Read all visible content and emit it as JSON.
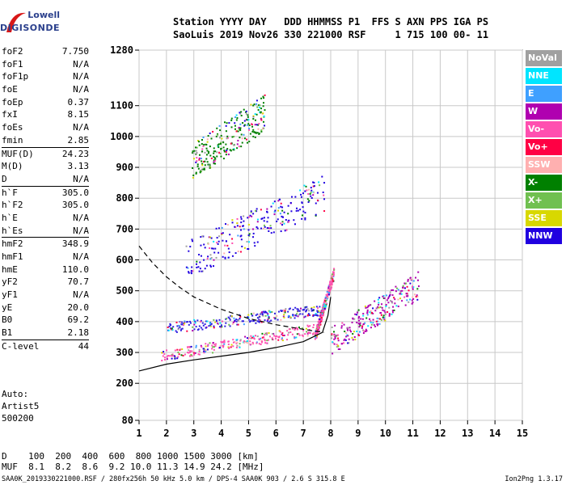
{
  "logo": {
    "line1": "Lowell",
    "line2": "DIGISONDE"
  },
  "header": {
    "line1": "Station YYYY DAY   DDD HHMMSS P1  FFS S AXN PPS IGA PS",
    "line2": "SaoLuis 2019 Nov26 330 221000 RSF     1 715 100 00- 11"
  },
  "params": [
    {
      "label": "foF2",
      "value": "7.750"
    },
    {
      "label": "foF1",
      "value": "N/A"
    },
    {
      "label": "foF1p",
      "value": "N/A"
    },
    {
      "label": "foE",
      "value": "N/A"
    },
    {
      "label": "foEp",
      "value": "0.37"
    },
    {
      "label": "fxI",
      "value": "8.15"
    },
    {
      "label": "foEs",
      "value": "N/A"
    },
    {
      "label": "fmin",
      "value": "2.85"
    },
    {
      "label": "MUF(D)",
      "value": "24.23",
      "sep": true
    },
    {
      "label": "M(D)",
      "value": "3.13"
    },
    {
      "label": "D",
      "value": "N/A"
    },
    {
      "label": "h`F",
      "value": "305.0",
      "sep": true
    },
    {
      "label": "h`F2",
      "value": "305.0"
    },
    {
      "label": "h`E",
      "value": "N/A"
    },
    {
      "label": "h`Es",
      "value": "N/A"
    },
    {
      "label": "hmF2",
      "value": "348.9",
      "sep": true
    },
    {
      "label": "hmF1",
      "value": "N/A"
    },
    {
      "label": "hmE",
      "value": "110.0"
    },
    {
      "label": "yF2",
      "value": "70.7"
    },
    {
      "label": "yF1",
      "value": "N/A"
    },
    {
      "label": "yE",
      "value": "20.0"
    },
    {
      "label": "B0",
      "value": "69.2"
    },
    {
      "label": "B1",
      "value": "2.18"
    },
    {
      "label": "C-level",
      "value": "44",
      "sep": true
    }
  ],
  "auto": {
    "line1": "Auto:",
    "line2": "Artist5",
    "line3": "500200"
  },
  "legend": [
    {
      "label": "NoVal",
      "color": "#a0a0a0"
    },
    {
      "label": "NNE",
      "color": "#00e5ff"
    },
    {
      "label": "E",
      "color": "#3fa0ff"
    },
    {
      "label": "W",
      "color": "#b000b0"
    },
    {
      "label": "Vo-",
      "color": "#ff4fb0"
    },
    {
      "label": "Vo+",
      "color": "#ff0044"
    },
    {
      "label": "SSW",
      "color": "#ffb0b0"
    },
    {
      "label": "X-",
      "color": "#008000"
    },
    {
      "label": "X+",
      "color": "#70c050"
    },
    {
      "label": "SSE",
      "color": "#d8d800"
    },
    {
      "label": "NNW",
      "color": "#2000e0"
    }
  ],
  "bottom": {
    "d_line": "D    100  200  400  600  800 1000 1500 3000 [km]",
    "muf_line": "MUF  8.1  8.2  8.6  9.2 10.0 11.3 14.9 24.2 [MHz]"
  },
  "footer": "SAA0K_2019330221000.RSF / 280fx256h 50 kHz 5.0 km / DPS-4 SAA0K 903 / 2.6 S 315.8 E",
  "version": "Ion2Png 1.3.17",
  "chart_data": {
    "type": "scatter",
    "xlim": [
      1,
      15
    ],
    "ylim": [
      80,
      1280
    ],
    "x_ticks": [
      1,
      2,
      3,
      4,
      5,
      6,
      7,
      8,
      9,
      10,
      11,
      12,
      13,
      14,
      15
    ],
    "x_tick_labels": [
      "1",
      "2",
      "3",
      "4",
      "5",
      "6",
      "7",
      "8",
      "9",
      "10",
      "11",
      "12",
      "13",
      "14",
      "15"
    ],
    "y_ticks": [
      80,
      200,
      300,
      400,
      500,
      600,
      700,
      800,
      900,
      1000,
      1100,
      1280
    ],
    "y_tick_labels": [
      "80",
      "200",
      "300",
      "400",
      "500",
      "600",
      "700",
      "800",
      "900",
      "1000",
      "1100",
      "1280"
    ],
    "grid": true,
    "scatter_clusters": [
      {
        "name": "o-trace F2",
        "x_range": [
          1.8,
          7.6
        ],
        "y_start": 290,
        "y_end": 380,
        "color": "#ff4fb0"
      },
      {
        "name": "upper traces",
        "x_range": [
          2.0,
          7.6
        ],
        "y_start": 380,
        "y_end": 440,
        "color": "#3020e0"
      },
      {
        "name": "cusp",
        "x_range": [
          7.4,
          8.1
        ],
        "y_start": 350,
        "y_end": 560,
        "color": "#ff4fb0"
      },
      {
        "name": "spread",
        "x_range": [
          8.0,
          11.2
        ],
        "y_start": 340,
        "y_end": 520,
        "color": "#b000b0"
      },
      {
        "name": "second hop",
        "x_range": [
          2.7,
          7.8
        ],
        "y_start": 600,
        "y_end": 820,
        "color": "#2000e0"
      },
      {
        "name": "third hop",
        "x_range": [
          2.9,
          5.6
        ],
        "y_start": 920,
        "y_end": 1080,
        "color": "#008000"
      }
    ],
    "profile_curve": [
      [
        1.0,
        240
      ],
      [
        2.0,
        262
      ],
      [
        3.0,
        276
      ],
      [
        4.0,
        288
      ],
      [
        5.0,
        300
      ],
      [
        6.0,
        316
      ],
      [
        7.0,
        335
      ],
      [
        7.7,
        365
      ],
      [
        7.9,
        420
      ],
      [
        8.0,
        480
      ]
    ],
    "dashed_curve": [
      [
        1.0,
        645
      ],
      [
        1.5,
        590
      ],
      [
        2.0,
        545
      ],
      [
        2.5,
        510
      ],
      [
        3.0,
        480
      ],
      [
        4.0,
        440
      ],
      [
        5.0,
        410
      ],
      [
        6.0,
        390
      ],
      [
        7.0,
        375
      ],
      [
        7.75,
        365
      ]
    ]
  }
}
